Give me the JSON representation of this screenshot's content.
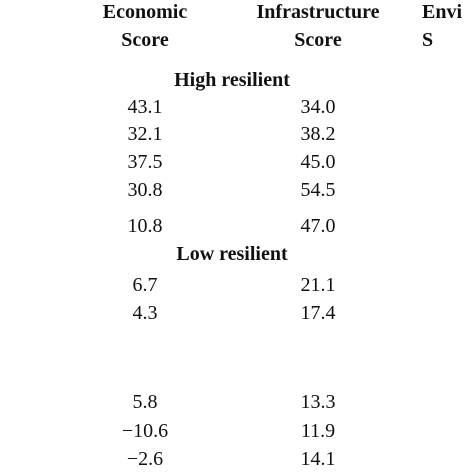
{
  "table": {
    "header": [
      [
        "Economic",
        "Score"
      ],
      [
        "Infrastructure",
        "Score"
      ],
      [
        "Envi",
        "S"
      ]
    ],
    "sections": [
      {
        "label": "High resilient",
        "rows": [
          [
            "43.1",
            "34.0"
          ],
          [
            "32.1",
            "38.2"
          ],
          [
            "37.5",
            "45.0"
          ],
          [
            "30.8",
            "54.5"
          ],
          [
            "10.8",
            "47.0"
          ]
        ]
      },
      {
        "label": "Low resilient",
        "rows": [
          [
            "6.7",
            "21.1"
          ],
          [
            "4.3",
            "17.4"
          ],
          [
            "5.8",
            "13.3"
          ],
          [
            "−10.6",
            "11.9"
          ],
          [
            "−2.6",
            "14.1"
          ]
        ]
      }
    ]
  }
}
